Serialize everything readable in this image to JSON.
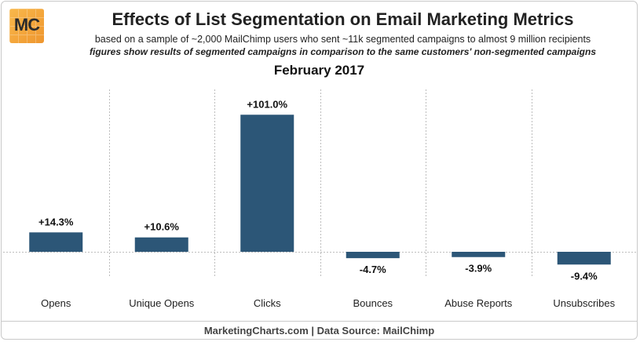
{
  "header": {
    "logo_text": "MC",
    "title": "Effects of List Segmentation on Email Marketing Metrics",
    "subtitle": "based on a sample of ~2,000 MailChimp users who sent ~11k segmented campaigns to almost 9 million recipients",
    "note": "figures show results of segmented campaigns in comparison to the same customers' non-segmented campaigns",
    "period": "February 2017"
  },
  "footer": {
    "source": "MarketingCharts.com | Data Source: MailChimp"
  },
  "colors": {
    "bar": "#2c5677",
    "grid": "#bdbdbd",
    "logo": "#f3a43a"
  },
  "chart_data": {
    "type": "bar",
    "title": "Effects of List Segmentation on Email Marketing Metrics",
    "subtitle": "February 2017",
    "xlabel": "",
    "ylabel": "",
    "categories": [
      "Opens",
      "Unique Opens",
      "Clicks",
      "Bounces",
      "Abuse Reports",
      "Unsubscribes"
    ],
    "values": [
      14.3,
      10.6,
      101.0,
      -4.7,
      -3.9,
      -9.4
    ],
    "data_labels": [
      "+14.3%",
      "+10.6%",
      "+101.0%",
      "-4.7%",
      "-3.9%",
      "-9.4%"
    ],
    "ylim": [
      -20,
      120
    ],
    "grid": "vertical dashed separators",
    "legend": "none"
  }
}
